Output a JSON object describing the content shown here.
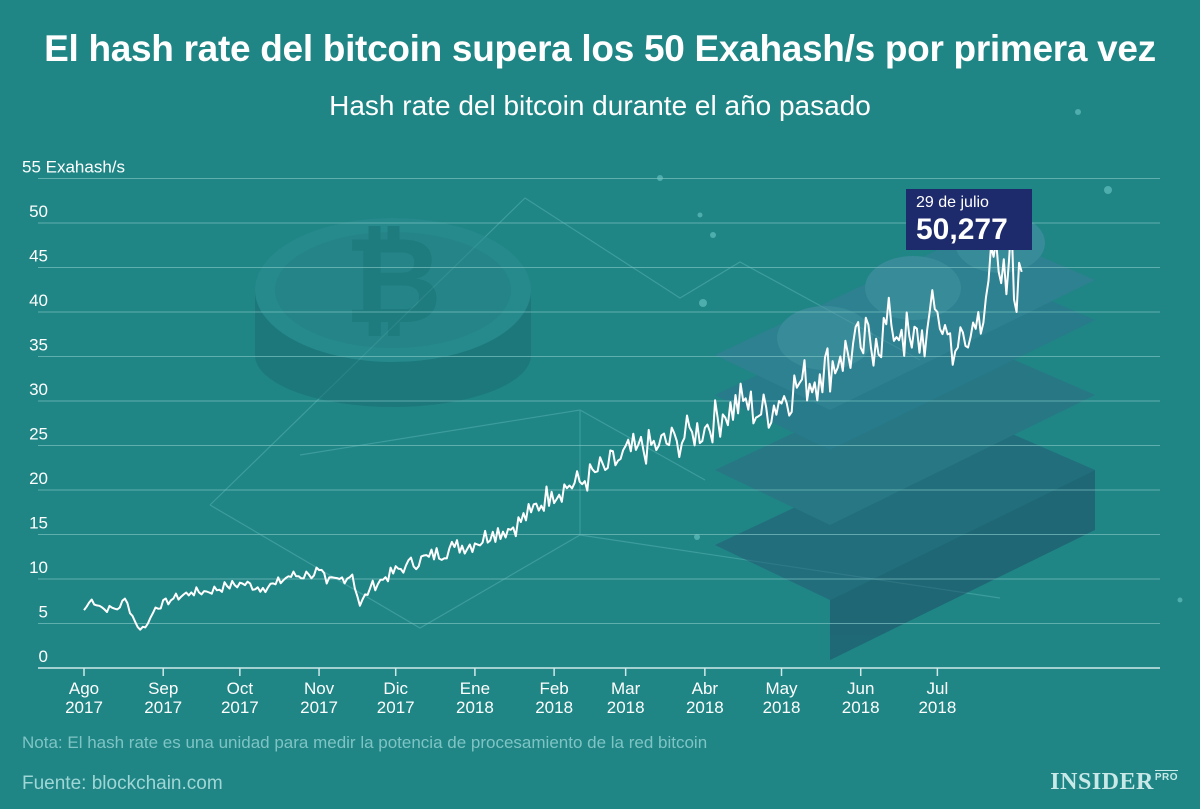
{
  "header": {
    "title": "El hash rate del bitcoin supera los 50 Exahash/s por primera vez",
    "subtitle": "Hash rate del bitcoin durante el año pasado"
  },
  "footer": {
    "note": "Nota: El hash rate es una unidad para medir la potencia de procesamiento de la red bitcoin",
    "source": "Fuente: blockchain.com",
    "brand": "INSIDER",
    "brand_suffix": "PRO"
  },
  "colors": {
    "background": "#1f8585",
    "line": "#ffffff",
    "grid": "#7cc2c2",
    "callout": "#1d2a6b"
  },
  "chart_data": {
    "type": "line",
    "ylabel_unit": "Exahash/s",
    "ylim": [
      0,
      55
    ],
    "yticks": [
      0,
      5,
      10,
      15,
      20,
      25,
      30,
      35,
      40,
      45,
      50,
      55
    ],
    "grid": true,
    "xticks": [
      {
        "label": "Ago",
        "year": "2017",
        "day": 0
      },
      {
        "label": "Sep",
        "year": "2017",
        "day": 31
      },
      {
        "label": "Oct",
        "year": "2017",
        "day": 61
      },
      {
        "label": "Nov",
        "year": "2017",
        "day": 92
      },
      {
        "label": "Dic",
        "year": "2017",
        "day": 122
      },
      {
        "label": "Ene",
        "year": "2018",
        "day": 153
      },
      {
        "label": "Feb",
        "year": "2018",
        "day": 184
      },
      {
        "label": "Mar",
        "year": "2018",
        "day": 212
      },
      {
        "label": "Abr",
        "year": "2018",
        "day": 243
      },
      {
        "label": "May",
        "year": "2018",
        "day": 273
      },
      {
        "label": "Jun",
        "year": "2018",
        "day": 304
      },
      {
        "label": "Jul",
        "year": "2018",
        "day": 334
      }
    ],
    "anchors": [
      [
        0,
        6.5
      ],
      [
        3,
        7.7
      ],
      [
        8,
        6.6
      ],
      [
        14,
        6.8
      ],
      [
        16,
        7.8
      ],
      [
        20,
        5.2
      ],
      [
        22,
        4.3
      ],
      [
        25,
        5.0
      ],
      [
        28,
        6.8
      ],
      [
        35,
        7.8
      ],
      [
        42,
        8.5
      ],
      [
        48,
        8.6
      ],
      [
        56,
        9.2
      ],
      [
        62,
        9.5
      ],
      [
        70,
        9.0
      ],
      [
        75,
        9.4
      ],
      [
        80,
        10.3
      ],
      [
        88,
        10.5
      ],
      [
        92,
        11.0
      ],
      [
        95,
        9.5
      ],
      [
        100,
        10.0
      ],
      [
        105,
        10.5
      ],
      [
        108,
        7.0
      ],
      [
        112,
        9.0
      ],
      [
        118,
        10.2
      ],
      [
        126,
        11.5
      ],
      [
        135,
        12.5
      ],
      [
        145,
        13.6
      ],
      [
        153,
        14.0
      ],
      [
        160,
        15.3
      ],
      [
        168,
        15.8
      ],
      [
        175,
        17.5
      ],
      [
        183,
        19.8
      ],
      [
        190,
        20.5
      ],
      [
        196,
        21.0
      ],
      [
        200,
        22.0
      ],
      [
        205,
        22.5
      ],
      [
        210,
        23.5
      ],
      [
        216,
        24.5
      ],
      [
        225,
        25.0
      ],
      [
        232,
        25.5
      ],
      [
        238,
        26.5
      ],
      [
        243,
        27.0
      ],
      [
        250,
        28.5
      ],
      [
        258,
        30.0
      ],
      [
        265,
        28.5
      ],
      [
        272,
        30.0
      ],
      [
        280,
        32.0
      ],
      [
        288,
        33.0
      ],
      [
        296,
        35.0
      ],
      [
        304,
        36.0
      ],
      [
        310,
        37.0
      ],
      [
        316,
        38.5
      ],
      [
        320,
        38.0
      ],
      [
        324,
        36.0
      ],
      [
        330,
        38.0
      ],
      [
        334,
        40.0
      ],
      [
        338,
        37.5
      ],
      [
        342,
        36.0
      ],
      [
        346,
        36.0
      ],
      [
        350,
        40.0
      ],
      [
        354,
        43.5
      ],
      [
        358,
        44.5
      ],
      [
        361,
        42.0
      ],
      [
        363,
        50.277
      ],
      [
        365,
        40.0
      ],
      [
        367,
        44.5
      ]
    ],
    "annotation": {
      "date": "29 de julio",
      "value": "50,277",
      "day": 363,
      "y": 50.277
    }
  }
}
